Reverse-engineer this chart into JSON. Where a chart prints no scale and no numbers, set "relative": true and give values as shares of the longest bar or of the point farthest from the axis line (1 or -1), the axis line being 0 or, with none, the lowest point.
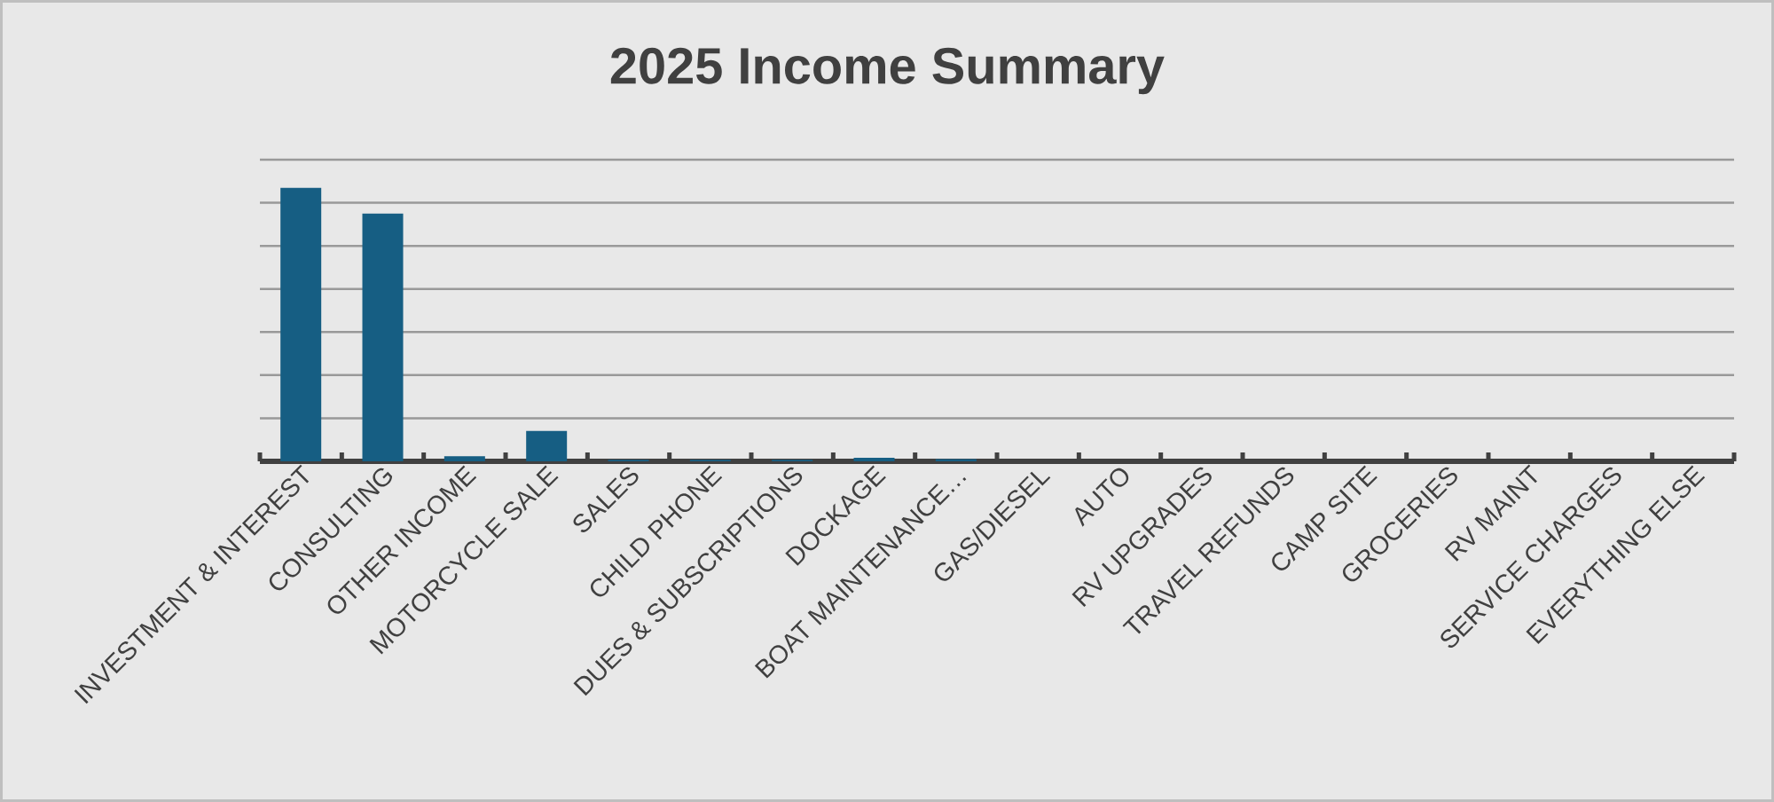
{
  "chart_data": {
    "type": "bar",
    "title": "2025 Income Summary",
    "relative": true,
    "grid": "y",
    "color": "#165e83",
    "categories": [
      "INVESTMENT & INTEREST",
      "CONSULTING",
      "OTHER INCOME",
      "MOTORCYCLE SALE",
      "SALES",
      "CHILD PHONE",
      "DUES & SUBSCRIPTIONS",
      "DOCKAGE",
      "BOAT MAINTENANCE…",
      "GAS/DIESEL",
      "AUTO",
      "RV UPGRADES",
      "TRAVEL REFUNDS",
      "CAMP SITE",
      "GROCERIES",
      "RV MAINT",
      "SERVICE CHARGES",
      "EVERYTHING ELSE"
    ],
    "values": [
      1,
      0.906,
      0.019,
      0.111,
      0.006,
      0.006,
      0.006,
      0.013,
      0.008,
      0,
      0,
      0,
      0,
      0,
      0,
      0,
      0,
      0
    ]
  }
}
